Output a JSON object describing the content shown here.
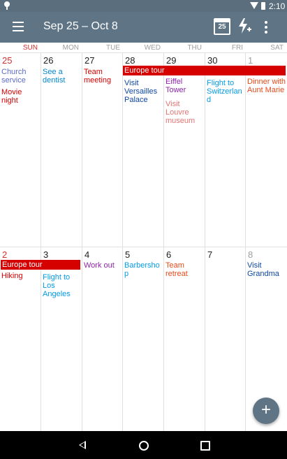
{
  "status_bar": {
    "time": "2:10"
  },
  "toolbar": {
    "title": "Sep 25 – Oct 8",
    "today_number": "25"
  },
  "weekdays": [
    "SUN",
    "MON",
    "TUE",
    "WED",
    "THU",
    "FRI",
    "SAT"
  ],
  "week1": {
    "days": [
      "25",
      "26",
      "27",
      "28",
      "29",
      "30",
      "1"
    ],
    "span_event": "Europe tour",
    "events": {
      "sun": [
        "Church service",
        "Movie night"
      ],
      "mon": "See a dentist",
      "tue": "Team meeting",
      "wed": "Visit Versailles Palace",
      "thu": [
        "Eiffel Tower",
        "Visit Louvre museum"
      ],
      "fri": "Flight to Switzerland",
      "sat": "Dinner with Aunt Marie"
    }
  },
  "week2": {
    "days": [
      "2",
      "3",
      "4",
      "5",
      "6",
      "7",
      "8"
    ],
    "span_event": "Europe tour",
    "events": {
      "sun": "Hiking",
      "mon": "Flight to Los Angeles",
      "tue": "Work out",
      "wed": "Barbershop",
      "thu": "Team retreat",
      "sat": "Visit Grandma"
    }
  },
  "fab": {
    "label": "+"
  },
  "colors": {
    "toolbar": "#5f7586",
    "status_bar": "#5a6e7d",
    "span_event": "#d50000",
    "sunday": "#d32f2f"
  }
}
